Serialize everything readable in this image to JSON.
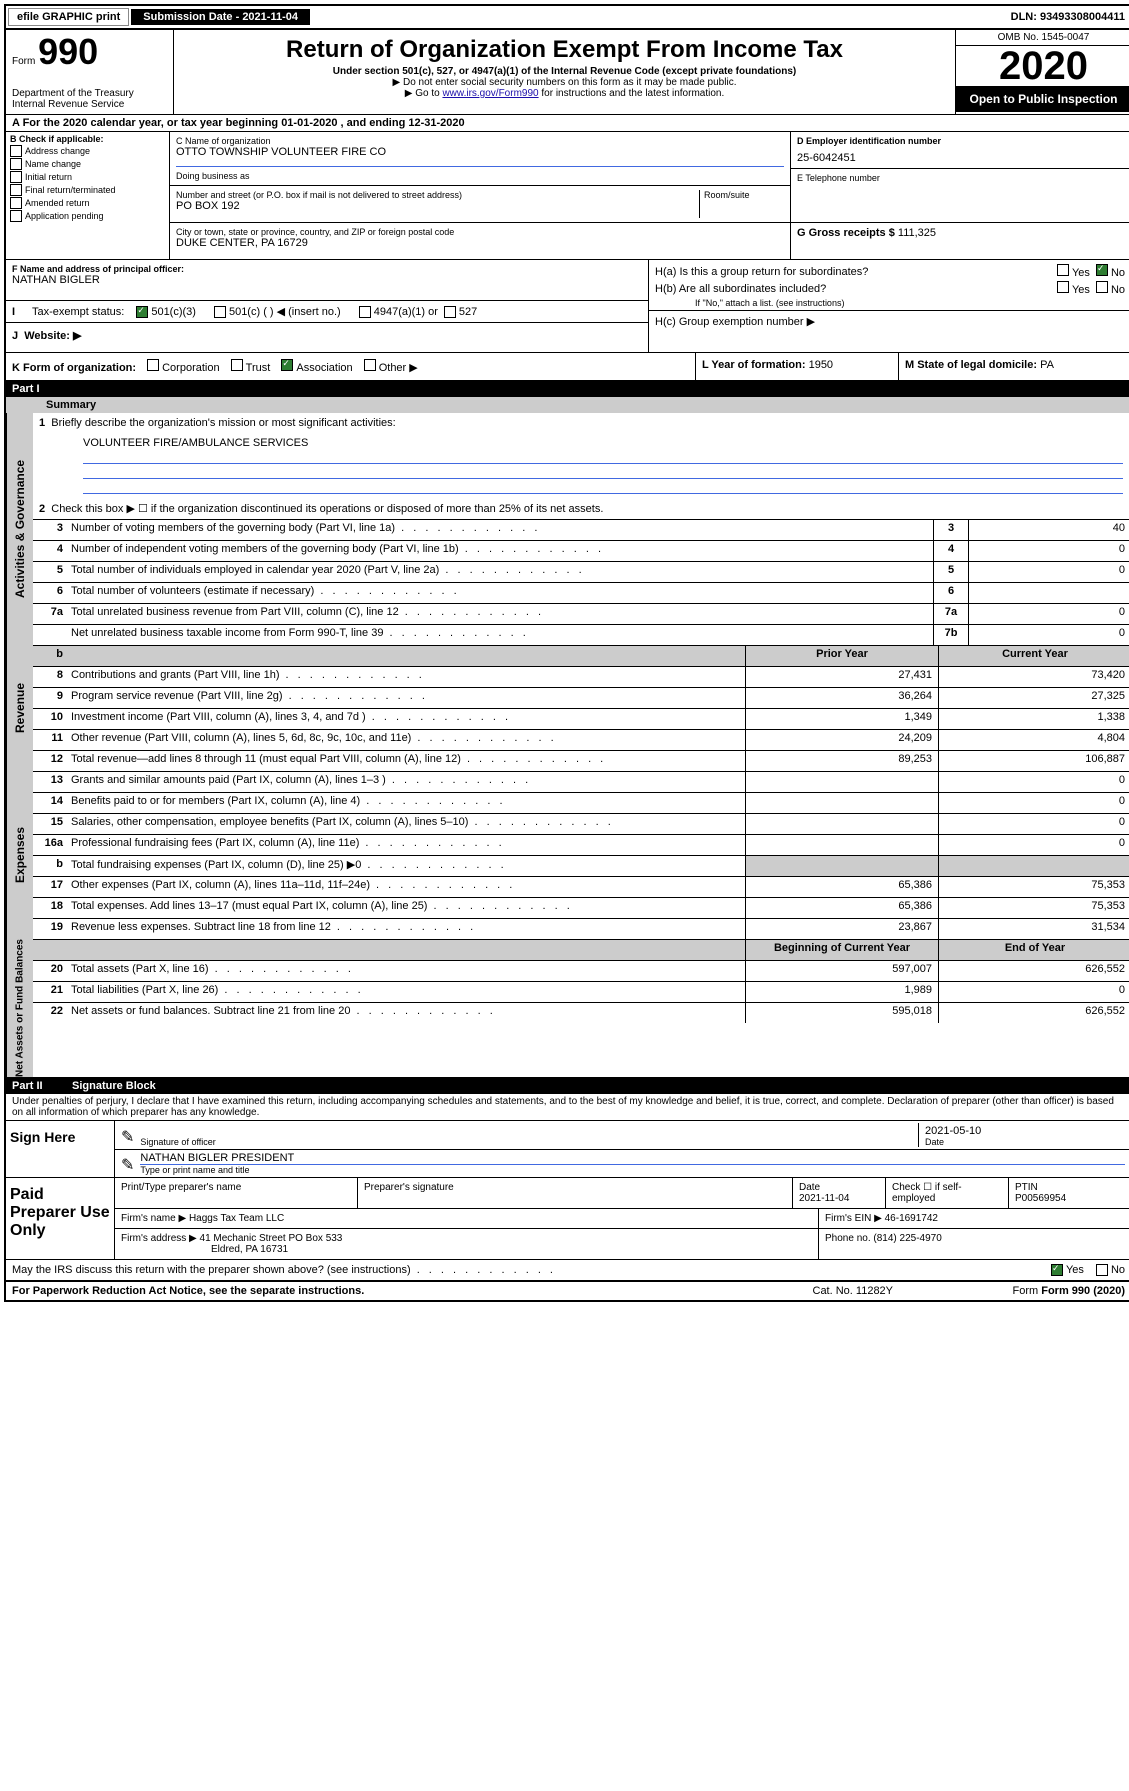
{
  "top": {
    "efile": "efile GRAPHIC print",
    "submission": "Submission Date - 2021-11-04",
    "dln": "DLN: 93493308004411"
  },
  "header": {
    "form_label": "Form",
    "form_num": "990",
    "dept": "Department of the Treasury",
    "irs": "Internal Revenue Service",
    "title": "Return of Organization Exempt From Income Tax",
    "sub1": "Under section 501(c), 527, or 4947(a)(1) of the Internal Revenue Code (except private foundations)",
    "sub2": "▶ Do not enter social security numbers on this form as it may be made public.",
    "sub3_pre": "▶ Go to ",
    "sub3_link": "www.irs.gov/Form990",
    "sub3_post": " for instructions and the latest information.",
    "omb": "OMB No. 1545-0047",
    "year": "2020",
    "open": "Open to Public Inspection"
  },
  "row_a": "A For the 2020 calendar year, or tax year beginning 01-01-2020    , and ending 12-31-2020",
  "col_b": {
    "title": "B Check if applicable:",
    "items": [
      "Address change",
      "Name change",
      "Initial return",
      "Final return/terminated",
      "Amended return",
      "Application pending"
    ]
  },
  "col_c": {
    "name_lbl": "C Name of organization",
    "name": "OTTO TOWNSHIP VOLUNTEER FIRE CO",
    "dba_lbl": "Doing business as",
    "addr_lbl": "Number and street (or P.O. box if mail is not delivered to street address)",
    "room_lbl": "Room/suite",
    "addr": "PO BOX 192",
    "city_lbl": "City or town, state or province, country, and ZIP or foreign postal code",
    "city": "DUKE CENTER, PA  16729"
  },
  "col_d": {
    "lbl": "D Employer identification number",
    "val": "25-6042451"
  },
  "col_e": {
    "lbl": "E Telephone number"
  },
  "col_g": {
    "lbl": "G Gross receipts $",
    "val": "111,325"
  },
  "col_f": {
    "lbl": "F  Name and address of principal officer:",
    "name": "NATHAN BIGLER"
  },
  "row_i": {
    "lbl": "Tax-exempt status:",
    "opt1": "501(c)(3)",
    "opt2": "501(c) (  ) ◀ (insert no.)",
    "opt3": "4947(a)(1) or",
    "opt4": "527"
  },
  "row_j": {
    "lbl": "Website: ▶"
  },
  "col_h": {
    "ha": "H(a)  Is this a group return for subordinates?",
    "hb": "H(b)  Are all subordinates included?",
    "hb_note": "If \"No,\" attach a list. (see instructions)",
    "hc": "H(c)  Group exemption number ▶",
    "yes": "Yes",
    "no": "No"
  },
  "row_k": {
    "lbl": "K Form of organization:",
    "opts": [
      "Corporation",
      "Trust",
      "Association",
      "Other ▶"
    ],
    "l_lbl": "L Year of formation:",
    "l_val": "1950",
    "m_lbl": "M State of legal domicile:",
    "m_val": "PA"
  },
  "part1": {
    "num": "Part I",
    "title": "Summary",
    "l1": "Briefly describe the organization's mission or most significant activities:",
    "l1_val": "VOLUNTEER FIRE/AMBULANCE SERVICES",
    "l2": "Check this box ▶ ☐  if the organization discontinued its operations or disposed of more than 25% of its net assets.",
    "rows_small": [
      {
        "n": "3",
        "t": "Number of voting members of the governing body (Part VI, line 1a)",
        "b": "3",
        "v": "40"
      },
      {
        "n": "4",
        "t": "Number of independent voting members of the governing body (Part VI, line 1b)",
        "b": "4",
        "v": "0"
      },
      {
        "n": "5",
        "t": "Total number of individuals employed in calendar year 2020 (Part V, line 2a)",
        "b": "5",
        "v": "0"
      },
      {
        "n": "6",
        "t": "Total number of volunteers (estimate if necessary)",
        "b": "6",
        "v": ""
      },
      {
        "n": "7a",
        "t": "Total unrelated business revenue from Part VIII, column (C), line 12",
        "b": "7a",
        "v": "0"
      },
      {
        "n": "",
        "t": "Net unrelated business taxable income from Form 990-T, line 39",
        "b": "7b",
        "v": "0"
      }
    ],
    "prior": "Prior Year",
    "current": "Current Year",
    "revenue": [
      {
        "n": "8",
        "t": "Contributions and grants (Part VIII, line 1h)",
        "p": "27,431",
        "c": "73,420"
      },
      {
        "n": "9",
        "t": "Program service revenue (Part VIII, line 2g)",
        "p": "36,264",
        "c": "27,325"
      },
      {
        "n": "10",
        "t": "Investment income (Part VIII, column (A), lines 3, 4, and 7d )",
        "p": "1,349",
        "c": "1,338"
      },
      {
        "n": "11",
        "t": "Other revenue (Part VIII, column (A), lines 5, 6d, 8c, 9c, 10c, and 11e)",
        "p": "24,209",
        "c": "4,804"
      },
      {
        "n": "12",
        "t": "Total revenue—add lines 8 through 11 (must equal Part VIII, column (A), line 12)",
        "p": "89,253",
        "c": "106,887"
      }
    ],
    "expenses": [
      {
        "n": "13",
        "t": "Grants and similar amounts paid (Part IX, column (A), lines 1–3 )",
        "p": "",
        "c": "0"
      },
      {
        "n": "14",
        "t": "Benefits paid to or for members (Part IX, column (A), line 4)",
        "p": "",
        "c": "0"
      },
      {
        "n": "15",
        "t": "Salaries, other compensation, employee benefits (Part IX, column (A), lines 5–10)",
        "p": "",
        "c": "0"
      },
      {
        "n": "16a",
        "t": "Professional fundraising fees (Part IX, column (A), line 11e)",
        "p": "",
        "c": "0"
      },
      {
        "n": "b",
        "t": "Total fundraising expenses (Part IX, column (D), line 25) ▶0",
        "p": "",
        "c": "",
        "grey": true
      },
      {
        "n": "17",
        "t": "Other expenses (Part IX, column (A), lines 11a–11d, 11f–24e)",
        "p": "65,386",
        "c": "75,353"
      },
      {
        "n": "18",
        "t": "Total expenses. Add lines 13–17 (must equal Part IX, column (A), line 25)",
        "p": "65,386",
        "c": "75,353"
      },
      {
        "n": "19",
        "t": "Revenue less expenses. Subtract line 18 from line 12",
        "p": "23,867",
        "c": "31,534"
      }
    ],
    "beg": "Beginning of Current Year",
    "end": "End of Year",
    "netassets": [
      {
        "n": "20",
        "t": "Total assets (Part X, line 16)",
        "p": "597,007",
        "c": "626,552"
      },
      {
        "n": "21",
        "t": "Total liabilities (Part X, line 26)",
        "p": "1,989",
        "c": "0"
      },
      {
        "n": "22",
        "t": "Net assets or fund balances. Subtract line 21 from line 20",
        "p": "595,018",
        "c": "626,552"
      }
    ],
    "vtabs": {
      "ag": "Activities & Governance",
      "rev": "Revenue",
      "exp": "Expenses",
      "net": "Net Assets or Fund Balances"
    }
  },
  "part2": {
    "num": "Part II",
    "title": "Signature Block",
    "perjury": "Under penalties of perjury, I declare that I have examined this return, including accompanying schedules and statements, and to the best of my knowledge and belief, it is true, correct, and complete. Declaration of preparer (other than officer) is based on all information of which preparer has any knowledge."
  },
  "sign": {
    "here": "Sign Here",
    "sig_officer": "Signature of officer",
    "name": "NATHAN BIGLER  PRESIDENT",
    "name_lbl": "Type or print name and title",
    "date": "2021-05-10",
    "date_lbl": "Date"
  },
  "prep": {
    "lbl": "Paid Preparer Use Only",
    "h1": "Print/Type preparer's name",
    "h2": "Preparer's signature",
    "h3": "Date",
    "h3v": "2021-11-04",
    "h4": "Check ☐ if self-employed",
    "h5": "PTIN",
    "h5v": "P00569954",
    "firm_name_lbl": "Firm's name    ▶",
    "firm_name": "Haggs Tax Team LLC",
    "firm_ein_lbl": "Firm's EIN ▶",
    "firm_ein": "46-1691742",
    "firm_addr_lbl": "Firm's address ▶",
    "firm_addr1": "41 Mechanic Street PO Box 533",
    "firm_addr2": "Eldred, PA  16731",
    "phone_lbl": "Phone no.",
    "phone": "(814) 225-4970"
  },
  "discuss": {
    "q": "May the IRS discuss this return with the preparer shown above? (see instructions)",
    "yes": "Yes",
    "no": "No"
  },
  "footer": {
    "pra": "For Paperwork Reduction Act Notice, see the separate instructions.",
    "cat": "Cat. No. 11282Y",
    "form": "Form 990 (2020)"
  }
}
